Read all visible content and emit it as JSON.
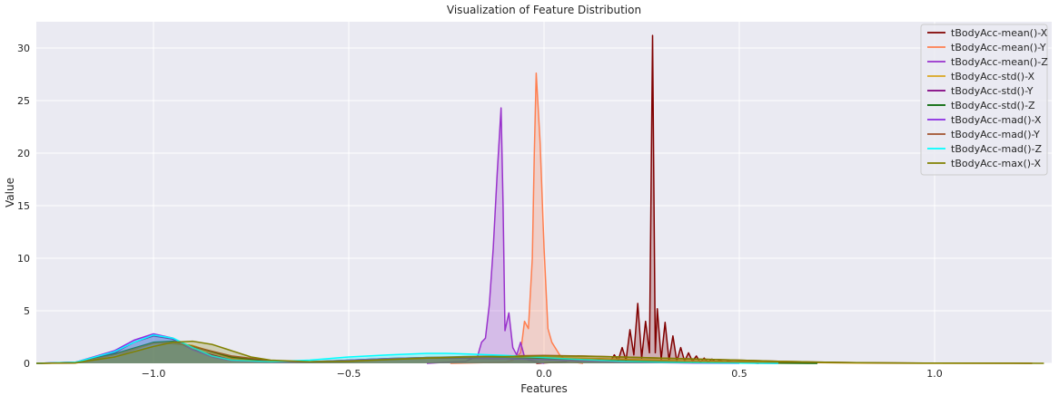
{
  "chart_data": {
    "type": "area",
    "title": "Visualization of Feature Distribution",
    "xlabel": "Features",
    "ylabel": "Value",
    "xlim": [
      -1.3,
      1.3
    ],
    "ylim": [
      0,
      32.5
    ],
    "xticks": [
      -1.0,
      -0.5,
      0.0,
      0.5,
      1.0
    ],
    "xtick_labels": [
      "−1.0",
      "−0.5",
      "0.0",
      "0.5",
      "1.0"
    ],
    "yticks": [
      0,
      5,
      10,
      15,
      20,
      25,
      30
    ],
    "ytick_labels": [
      "0",
      "5",
      "10",
      "15",
      "20",
      "25",
      "30"
    ],
    "grid": true,
    "legend_position": "top-right",
    "colors": {
      "background": "#eaeaf2",
      "grid": "#ffffff"
    },
    "series": [
      {
        "name": "tBodyAcc-mean()-X",
        "color": "#800000",
        "fill": true,
        "x": [
          -0.02,
          0.14,
          0.17,
          0.18,
          0.19,
          0.2,
          0.21,
          0.22,
          0.23,
          0.24,
          0.25,
          0.26,
          0.27,
          0.278,
          0.285,
          0.29,
          0.3,
          0.31,
          0.32,
          0.33,
          0.34,
          0.35,
          0.36,
          0.37,
          0.38,
          0.39,
          0.4,
          0.41,
          0.42,
          0.43,
          0.44,
          0.45,
          0.46,
          0.47,
          0.5,
          0.55
        ],
        "y": [
          0,
          0.3,
          0.2,
          0.8,
          0.3,
          1.5,
          0.3,
          3.2,
          0.8,
          5.7,
          0.5,
          4.0,
          1.0,
          31.2,
          1.0,
          5.2,
          0.4,
          3.9,
          0.3,
          2.6,
          0.2,
          1.5,
          0.2,
          1.0,
          0.2,
          0.7,
          0.1,
          0.5,
          0.1,
          0.4,
          0.1,
          0.3,
          0.1,
          0.2,
          0.1,
          0
        ]
      },
      {
        "name": "tBodyAcc-mean()-Y",
        "color": "#ff7f50",
        "fill": true,
        "x": [
          -0.24,
          -0.1,
          -0.08,
          -0.06,
          -0.05,
          -0.04,
          -0.03,
          -0.025,
          -0.02,
          -0.01,
          0.0,
          0.01,
          0.02,
          0.04,
          0.06,
          0.1
        ],
        "y": [
          0,
          0.1,
          0.3,
          1.0,
          4.0,
          3.3,
          10.0,
          20.0,
          27.6,
          21.0,
          11.0,
          3.3,
          2.0,
          0.8,
          0.2,
          0
        ]
      },
      {
        "name": "tBodyAcc-mean()-Z",
        "color": "#9932cc",
        "fill": true,
        "x": [
          -0.3,
          -0.2,
          -0.17,
          -0.16,
          -0.15,
          -0.14,
          -0.13,
          -0.12,
          -0.11,
          -0.105,
          -0.1,
          -0.09,
          -0.08,
          -0.07,
          -0.06,
          -0.05,
          -0.04,
          0.0
        ],
        "y": [
          0,
          0.2,
          0.7,
          2.0,
          2.4,
          5.6,
          11.0,
          18.0,
          24.3,
          15.0,
          3.1,
          4.8,
          1.5,
          0.8,
          2.0,
          0.6,
          0.3,
          0
        ]
      },
      {
        "name": "tBodyAcc-std()-X",
        "color": "#daa520",
        "fill": true,
        "x": [
          -1.3,
          -1.2,
          -1.1,
          -1.0,
          -0.9,
          -0.8,
          -0.7,
          -0.6,
          -0.5,
          -0.4,
          -0.3,
          -0.2,
          -0.1,
          0.0,
          0.1,
          0.2,
          0.3,
          0.4,
          0.5,
          0.6,
          0.7,
          0.8,
          0.9,
          1.0,
          1.1,
          1.2,
          1.25
        ],
        "y": [
          0,
          0.02,
          0.6,
          2.0,
          1.7,
          0.5,
          0.15,
          0.1,
          0.15,
          0.35,
          0.5,
          0.6,
          0.6,
          0.55,
          0.5,
          0.4,
          0.3,
          0.22,
          0.15,
          0.1,
          0.06,
          0.03,
          0.01,
          0.0,
          0.0,
          0.0,
          0
        ]
      },
      {
        "name": "tBodyAcc-std()-Y",
        "color": "#800080",
        "fill": true,
        "x": [
          -1.3,
          -1.2,
          -1.1,
          -1.05,
          -1.0,
          -0.95,
          -0.9,
          -0.8,
          -0.7,
          -0.6,
          -0.5,
          -0.4,
          -0.3,
          -0.2,
          -0.1,
          0.0,
          0.1,
          0.2,
          0.3,
          0.4,
          0.5,
          0.6
        ],
        "y": [
          0,
          0.1,
          1.0,
          2.0,
          2.6,
          2.3,
          1.3,
          0.3,
          0.1,
          0.1,
          0.2,
          0.4,
          0.5,
          0.5,
          0.45,
          0.35,
          0.25,
          0.15,
          0.08,
          0.04,
          0.02,
          0
        ]
      },
      {
        "name": "tBodyAcc-std()-Z",
        "color": "#006400",
        "fill": true,
        "x": [
          -1.3,
          -1.2,
          -1.1,
          -1.0,
          -0.95,
          -0.9,
          -0.8,
          -0.7,
          -0.6,
          -0.5,
          -0.4,
          -0.3,
          -0.2,
          -0.1,
          0.0,
          0.1,
          0.2,
          0.3,
          0.4,
          0.5,
          0.6,
          0.7
        ],
        "y": [
          0,
          0.05,
          0.9,
          2.0,
          2.1,
          1.6,
          0.6,
          0.2,
          0.15,
          0.3,
          0.45,
          0.55,
          0.55,
          0.5,
          0.45,
          0.35,
          0.25,
          0.15,
          0.08,
          0.04,
          0.02,
          0
        ]
      },
      {
        "name": "tBodyAcc-mad()-X",
        "color": "#8a2be2",
        "fill": true,
        "x": [
          -1.3,
          -1.2,
          -1.1,
          -1.05,
          -1.0,
          -0.95,
          -0.9,
          -0.85,
          -0.8,
          -0.7,
          -0.6,
          -0.5,
          -0.4,
          -0.3,
          -0.2,
          -0.1,
          0.0,
          0.1,
          0.2,
          0.3,
          0.4,
          0.5
        ],
        "y": [
          0,
          0.1,
          1.2,
          2.2,
          2.8,
          2.4,
          1.3,
          0.6,
          0.25,
          0.1,
          0.15,
          0.3,
          0.45,
          0.55,
          0.55,
          0.45,
          0.35,
          0.22,
          0.12,
          0.06,
          0.03,
          0
        ]
      },
      {
        "name": "tBodyAcc-mad()-Y",
        "color": "#a0522d",
        "fill": true,
        "x": [
          -1.3,
          -1.2,
          -1.1,
          -1.0,
          -0.95,
          -0.9,
          -0.8,
          -0.7,
          -0.6,
          -0.5,
          -0.4,
          -0.3,
          -0.2,
          -0.1,
          0.0,
          0.1,
          0.2,
          0.3,
          0.4,
          0.5,
          0.6,
          0.7,
          0.8,
          1.0,
          1.2,
          1.25
        ],
        "y": [
          0,
          0.05,
          0.8,
          1.9,
          2.0,
          1.6,
          0.7,
          0.25,
          0.15,
          0.25,
          0.4,
          0.55,
          0.65,
          0.7,
          0.75,
          0.7,
          0.6,
          0.5,
          0.4,
          0.3,
          0.2,
          0.12,
          0.06,
          0.02,
          0.01,
          0
        ]
      },
      {
        "name": "tBodyAcc-mad()-Z",
        "color": "#00ffff",
        "fill": true,
        "x": [
          -1.3,
          -1.2,
          -1.1,
          -1.05,
          -1.0,
          -0.95,
          -0.9,
          -0.85,
          -0.8,
          -0.7,
          -0.6,
          -0.5,
          -0.4,
          -0.3,
          -0.25,
          -0.2,
          -0.1,
          0.0,
          0.1,
          0.2,
          0.3,
          0.4,
          0.5,
          0.6
        ],
        "y": [
          0,
          0.1,
          1.1,
          2.0,
          2.7,
          2.4,
          1.5,
          0.7,
          0.3,
          0.15,
          0.3,
          0.6,
          0.8,
          0.95,
          0.95,
          0.9,
          0.75,
          0.55,
          0.35,
          0.2,
          0.1,
          0.05,
          0.02,
          0
        ]
      },
      {
        "name": "tBodyAcc-max()-X",
        "color": "#808000",
        "fill": true,
        "x": [
          -1.3,
          -1.2,
          -1.1,
          -1.0,
          -0.95,
          -0.9,
          -0.85,
          -0.8,
          -0.75,
          -0.7,
          -0.6,
          -0.5,
          -0.4,
          -0.3,
          -0.2,
          -0.1,
          0.0,
          0.1,
          0.2,
          0.3,
          0.4,
          0.5,
          0.6,
          0.7,
          0.8,
          1.0,
          1.2,
          1.28
        ],
        "y": [
          0,
          0.05,
          0.6,
          1.6,
          2.0,
          2.1,
          1.8,
          1.2,
          0.6,
          0.3,
          0.15,
          0.2,
          0.35,
          0.5,
          0.6,
          0.65,
          0.7,
          0.68,
          0.6,
          0.5,
          0.4,
          0.3,
          0.2,
          0.12,
          0.06,
          0.02,
          0.01,
          0
        ]
      }
    ]
  }
}
